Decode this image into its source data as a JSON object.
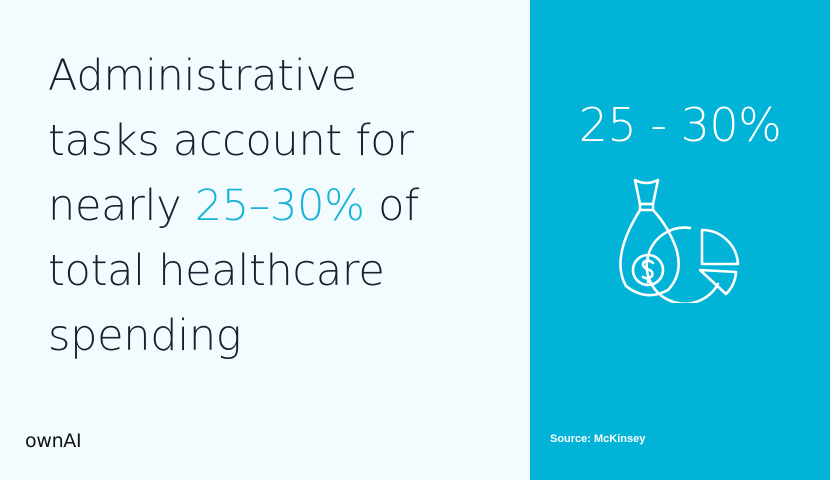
{
  "headline": {
    "line1": "Administrative",
    "line2": "tasks account for",
    "line3_pre": "nearly ",
    "line3_accent": "25–30%",
    "line3_post": " of",
    "line4": "total healthcare",
    "line5": "spending"
  },
  "logo": "ownAI",
  "stat": "25 - 30%",
  "icon": "money-bag-pie-chart-icon",
  "source": "Source: McKinsey",
  "colors": {
    "background": "#f2fcfe",
    "panel": "#00b3d7",
    "accent": "#18b3d6",
    "text": "#17202e"
  }
}
